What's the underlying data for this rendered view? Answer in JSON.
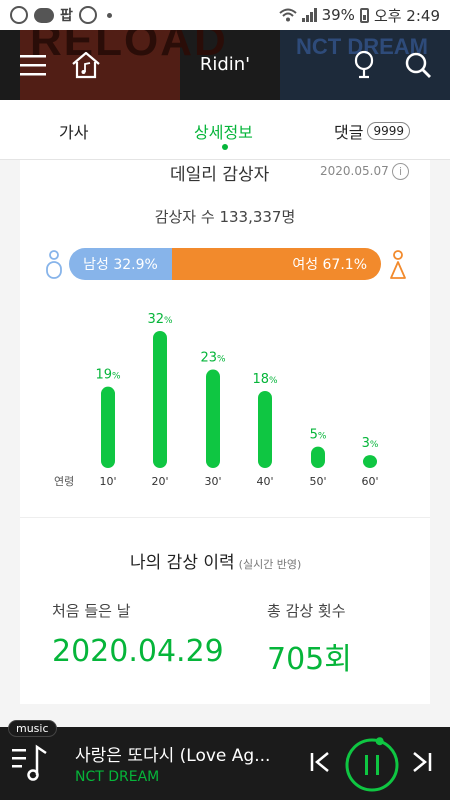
{
  "status_bar": {
    "left_text": "팝",
    "battery": "39%",
    "time": "오후 2:49"
  },
  "header": {
    "title": "Ridin'",
    "bg_text_left": "RELOAD",
    "bg_text_right": "NCT DREAM"
  },
  "tabs": {
    "lyrics": "가사",
    "detail": "상세정보",
    "comments": "댓글",
    "comments_count": "9999"
  },
  "daily": {
    "title": "데일리 감상자",
    "date": "2020.05.07",
    "info_icon": "i",
    "listeners": "감상자 수 133,337명",
    "male_label": "남성 32.9%",
    "female_label": "여성 67.1%",
    "male_share": 32.9,
    "female_share": 67.1
  },
  "chart_data": {
    "type": "bar",
    "xlabel": "연령",
    "categories": [
      "10'",
      "20'",
      "30'",
      "40'",
      "50'",
      "60'"
    ],
    "values": [
      19,
      32,
      23,
      18,
      5,
      3
    ],
    "value_suffix": "%",
    "bar_color": "#0fc642",
    "label_color": "#06b53a"
  },
  "history": {
    "title": "나의 감상 이력",
    "subtitle": "(실시간 반영)",
    "first_label": "처음 들은 날",
    "first_value": "2020.04.29",
    "count_label": "총 감상 횟수",
    "count_value": "705회"
  },
  "player": {
    "tag": "music",
    "title": "사랑은 또다시 (Love Ag...",
    "artist": "NCT DREAM",
    "progress": 0.05
  },
  "colors": {
    "accent": "#06b53a",
    "male": "#87b4ea",
    "female": "#f28a2c"
  }
}
